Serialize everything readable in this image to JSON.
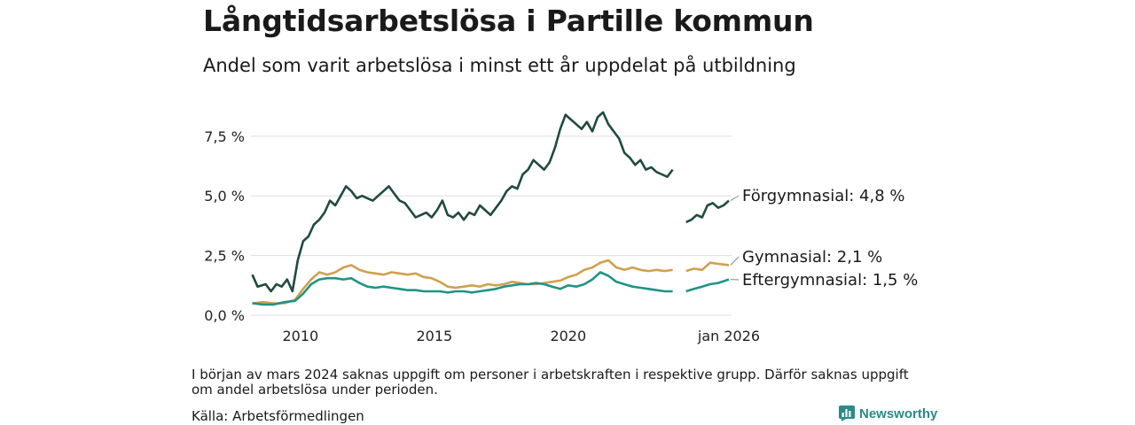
{
  "title": "Långtidsarbetslösa i Partille kommun",
  "subtitle": "Andel som varit arbetslösa i minst ett år uppdelat på utbildning",
  "footnote": "I början av mars 2024 saknas uppgift om personer i arbetskraften i respektive grupp. Därför saknas uppgift om andel arbetslösa under perioden.",
  "source": "Källa: Arbetsförmedlingen",
  "brand": "Newsworthy",
  "colors": {
    "forgymnasial": "#1f4a42",
    "gymnasial": "#d0a050",
    "eftergymnasial": "#1f9484",
    "grid": "#dddddd",
    "brand": "#2a8a86"
  },
  "chart_data": {
    "type": "line",
    "title": "Långtidsarbetslösa i Partille kommun",
    "xlabel": "",
    "ylabel": "",
    "x_ticks": [
      {
        "label": "2010",
        "x": 2010.0
      },
      {
        "label": "2015",
        "x": 2015.0
      },
      {
        "label": "2020",
        "x": 2020.0
      },
      {
        "label": "jan 2026",
        "x": 2026.0
      }
    ],
    "y_ticks": [
      {
        "label": "0,0 %",
        "value": 0
      },
      {
        "label": "2,5 %",
        "value": 2.5
      },
      {
        "label": "5,0 %",
        "value": 5.0
      },
      {
        "label": "7,5 %",
        "value": 7.5
      }
    ],
    "xlim": [
      2008.15,
      2026.1
    ],
    "ylim": [
      0,
      9.2
    ],
    "gap": [
      2024.0,
      2024.35
    ],
    "series": [
      {
        "name": "Förgymnasial",
        "label": "Förgymnasial: 4,8 %",
        "color": "#1f4a42",
        "points": [
          [
            2008.2,
            1.7
          ],
          [
            2008.4,
            1.2
          ],
          [
            2008.7,
            1.3
          ],
          [
            2008.9,
            1.0
          ],
          [
            2009.1,
            1.3
          ],
          [
            2009.3,
            1.2
          ],
          [
            2009.5,
            1.5
          ],
          [
            2009.7,
            1.0
          ],
          [
            2009.9,
            2.3
          ],
          [
            2010.1,
            3.1
          ],
          [
            2010.3,
            3.3
          ],
          [
            2010.5,
            3.8
          ],
          [
            2010.7,
            4.0
          ],
          [
            2010.9,
            4.3
          ],
          [
            2011.1,
            4.8
          ],
          [
            2011.3,
            4.6
          ],
          [
            2011.5,
            5.0
          ],
          [
            2011.7,
            5.4
          ],
          [
            2011.9,
            5.2
          ],
          [
            2012.1,
            4.9
          ],
          [
            2012.3,
            5.0
          ],
          [
            2012.5,
            4.9
          ],
          [
            2012.7,
            4.8
          ],
          [
            2012.9,
            5.0
          ],
          [
            2013.1,
            5.2
          ],
          [
            2013.3,
            5.4
          ],
          [
            2013.5,
            5.1
          ],
          [
            2013.7,
            4.8
          ],
          [
            2013.9,
            4.7
          ],
          [
            2014.1,
            4.4
          ],
          [
            2014.3,
            4.1
          ],
          [
            2014.5,
            4.2
          ],
          [
            2014.7,
            4.3
          ],
          [
            2014.9,
            4.1
          ],
          [
            2015.1,
            4.4
          ],
          [
            2015.3,
            4.8
          ],
          [
            2015.5,
            4.2
          ],
          [
            2015.7,
            4.1
          ],
          [
            2015.9,
            4.3
          ],
          [
            2016.1,
            4.0
          ],
          [
            2016.3,
            4.3
          ],
          [
            2016.5,
            4.2
          ],
          [
            2016.7,
            4.6
          ],
          [
            2016.9,
            4.4
          ],
          [
            2017.1,
            4.2
          ],
          [
            2017.3,
            4.5
          ],
          [
            2017.5,
            4.8
          ],
          [
            2017.7,
            5.2
          ],
          [
            2017.9,
            5.4
          ],
          [
            2018.1,
            5.3
          ],
          [
            2018.3,
            5.9
          ],
          [
            2018.5,
            6.1
          ],
          [
            2018.7,
            6.5
          ],
          [
            2018.9,
            6.3
          ],
          [
            2019.1,
            6.1
          ],
          [
            2019.3,
            6.4
          ],
          [
            2019.5,
            7.0
          ],
          [
            2019.7,
            7.8
          ],
          [
            2019.9,
            8.4
          ],
          [
            2020.1,
            8.2
          ],
          [
            2020.3,
            8.0
          ],
          [
            2020.5,
            7.8
          ],
          [
            2020.7,
            8.1
          ],
          [
            2020.9,
            7.7
          ],
          [
            2021.1,
            8.3
          ],
          [
            2021.3,
            8.5
          ],
          [
            2021.5,
            8.0
          ],
          [
            2021.7,
            7.7
          ],
          [
            2021.9,
            7.4
          ],
          [
            2022.1,
            6.8
          ],
          [
            2022.3,
            6.6
          ],
          [
            2022.5,
            6.3
          ],
          [
            2022.7,
            6.5
          ],
          [
            2022.9,
            6.1
          ],
          [
            2023.1,
            6.2
          ],
          [
            2023.3,
            6.0
          ],
          [
            2023.5,
            5.9
          ],
          [
            2023.7,
            5.8
          ],
          [
            2023.9,
            6.1
          ],
          [
            2024.4,
            3.9
          ],
          [
            2024.6,
            4.0
          ],
          [
            2024.8,
            4.2
          ],
          [
            2025.0,
            4.1
          ],
          [
            2025.2,
            4.6
          ],
          [
            2025.4,
            4.7
          ],
          [
            2025.6,
            4.5
          ],
          [
            2025.8,
            4.6
          ],
          [
            2026.0,
            4.8
          ]
        ]
      },
      {
        "name": "Gymnasial",
        "label": "Gymnasial: 2,1 %",
        "color": "#d0a050",
        "points": [
          [
            2008.2,
            0.5
          ],
          [
            2008.6,
            0.55
          ],
          [
            2009.0,
            0.5
          ],
          [
            2009.4,
            0.5
          ],
          [
            2009.8,
            0.65
          ],
          [
            2010.1,
            1.1
          ],
          [
            2010.4,
            1.5
          ],
          [
            2010.7,
            1.8
          ],
          [
            2011.0,
            1.7
          ],
          [
            2011.3,
            1.8
          ],
          [
            2011.6,
            2.0
          ],
          [
            2011.9,
            2.1
          ],
          [
            2012.2,
            1.9
          ],
          [
            2012.5,
            1.8
          ],
          [
            2012.8,
            1.75
          ],
          [
            2013.1,
            1.7
          ],
          [
            2013.4,
            1.8
          ],
          [
            2013.7,
            1.75
          ],
          [
            2014.0,
            1.7
          ],
          [
            2014.3,
            1.75
          ],
          [
            2014.6,
            1.6
          ],
          [
            2014.9,
            1.55
          ],
          [
            2015.2,
            1.4
          ],
          [
            2015.5,
            1.2
          ],
          [
            2015.8,
            1.15
          ],
          [
            2016.1,
            1.2
          ],
          [
            2016.4,
            1.25
          ],
          [
            2016.7,
            1.2
          ],
          [
            2017.0,
            1.3
          ],
          [
            2017.3,
            1.25
          ],
          [
            2017.6,
            1.3
          ],
          [
            2017.9,
            1.4
          ],
          [
            2018.2,
            1.35
          ],
          [
            2018.5,
            1.3
          ],
          [
            2018.8,
            1.3
          ],
          [
            2019.1,
            1.35
          ],
          [
            2019.4,
            1.4
          ],
          [
            2019.7,
            1.45
          ],
          [
            2020.0,
            1.6
          ],
          [
            2020.3,
            1.7
          ],
          [
            2020.6,
            1.9
          ],
          [
            2020.9,
            2.0
          ],
          [
            2021.2,
            2.2
          ],
          [
            2021.5,
            2.3
          ],
          [
            2021.8,
            2.0
          ],
          [
            2022.1,
            1.9
          ],
          [
            2022.4,
            2.0
          ],
          [
            2022.7,
            1.9
          ],
          [
            2023.0,
            1.85
          ],
          [
            2023.3,
            1.9
          ],
          [
            2023.6,
            1.85
          ],
          [
            2023.9,
            1.9
          ],
          [
            2024.4,
            1.85
          ],
          [
            2024.7,
            1.95
          ],
          [
            2025.0,
            1.9
          ],
          [
            2025.3,
            2.2
          ],
          [
            2025.6,
            2.15
          ],
          [
            2026.0,
            2.1
          ]
        ]
      },
      {
        "name": "Eftergymnasial",
        "label": "Eftergymnasial: 1,5 %",
        "color": "#1f9484",
        "points": [
          [
            2008.2,
            0.5
          ],
          [
            2008.6,
            0.45
          ],
          [
            2009.0,
            0.45
          ],
          [
            2009.4,
            0.55
          ],
          [
            2009.8,
            0.6
          ],
          [
            2010.1,
            0.9
          ],
          [
            2010.4,
            1.3
          ],
          [
            2010.7,
            1.5
          ],
          [
            2011.0,
            1.55
          ],
          [
            2011.3,
            1.55
          ],
          [
            2011.6,
            1.5
          ],
          [
            2011.9,
            1.55
          ],
          [
            2012.2,
            1.35
          ],
          [
            2012.5,
            1.2
          ],
          [
            2012.8,
            1.15
          ],
          [
            2013.1,
            1.2
          ],
          [
            2013.4,
            1.15
          ],
          [
            2013.7,
            1.1
          ],
          [
            2014.0,
            1.05
          ],
          [
            2014.3,
            1.05
          ],
          [
            2014.6,
            1.0
          ],
          [
            2014.9,
            1.0
          ],
          [
            2015.2,
            1.0
          ],
          [
            2015.5,
            0.95
          ],
          [
            2015.8,
            1.0
          ],
          [
            2016.1,
            1.0
          ],
          [
            2016.4,
            0.95
          ],
          [
            2016.7,
            1.0
          ],
          [
            2017.0,
            1.05
          ],
          [
            2017.3,
            1.1
          ],
          [
            2017.6,
            1.2
          ],
          [
            2017.9,
            1.25
          ],
          [
            2018.2,
            1.3
          ],
          [
            2018.5,
            1.3
          ],
          [
            2018.8,
            1.35
          ],
          [
            2019.1,
            1.3
          ],
          [
            2019.4,
            1.2
          ],
          [
            2019.7,
            1.1
          ],
          [
            2020.0,
            1.25
          ],
          [
            2020.3,
            1.2
          ],
          [
            2020.6,
            1.3
          ],
          [
            2020.9,
            1.5
          ],
          [
            2021.2,
            1.8
          ],
          [
            2021.5,
            1.65
          ],
          [
            2021.8,
            1.4
          ],
          [
            2022.1,
            1.3
          ],
          [
            2022.4,
            1.2
          ],
          [
            2022.7,
            1.15
          ],
          [
            2023.0,
            1.1
          ],
          [
            2023.3,
            1.05
          ],
          [
            2023.6,
            1.0
          ],
          [
            2023.9,
            1.0
          ],
          [
            2024.4,
            1.0
          ],
          [
            2024.7,
            1.1
          ],
          [
            2025.0,
            1.2
          ],
          [
            2025.3,
            1.3
          ],
          [
            2025.6,
            1.35
          ],
          [
            2026.0,
            1.5
          ]
        ]
      }
    ]
  }
}
